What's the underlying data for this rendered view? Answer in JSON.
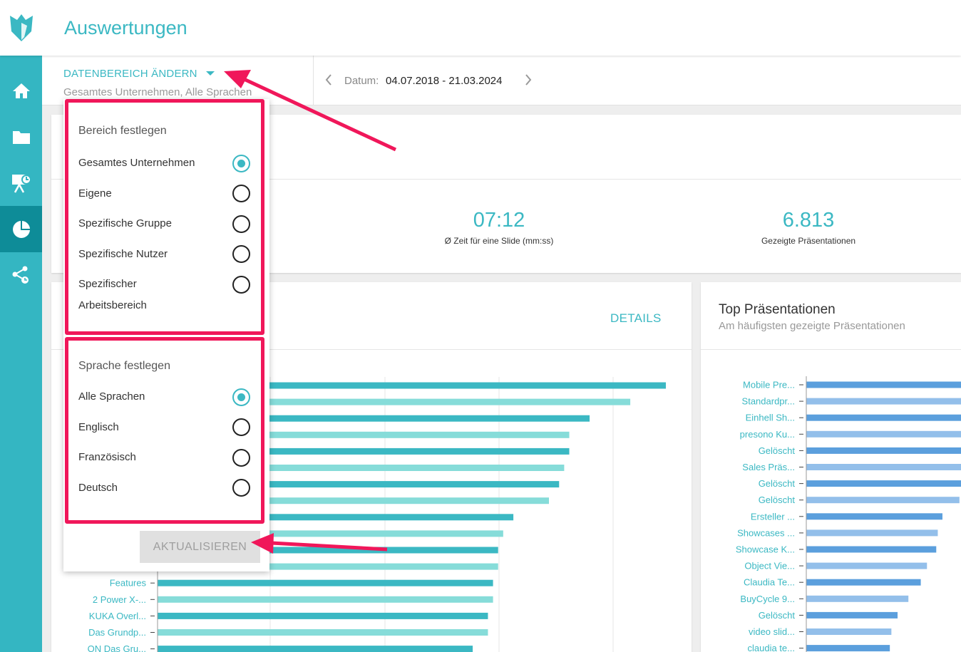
{
  "app": {
    "title": "Auswertungen",
    "logo_icon": "fox-logo-icon"
  },
  "sidebar": {
    "items": [
      {
        "name": "home",
        "icon": "home-icon",
        "active": false
      },
      {
        "name": "files",
        "icon": "folder-icon",
        "active": false
      },
      {
        "name": "presentations",
        "icon": "presentation-icon",
        "active": false
      },
      {
        "name": "analytics",
        "icon": "pie-chart-icon",
        "active": true
      },
      {
        "name": "shares",
        "icon": "share-icon",
        "active": false
      }
    ]
  },
  "filter": {
    "range_label": "DATENBEREICH ÄNDERN",
    "range_sub": "Gesamtes Unternehmen, Alle Sprachen",
    "date_label": "Datum:",
    "date_value": "04.07.2018 - 21.03.2024"
  },
  "kpis": [
    {
      "value": "07:12",
      "label": "Ø Zeit für eine Slide (mm:ss)"
    },
    {
      "value": "6.813",
      "label": "Gezeigte Präsentationen"
    }
  ],
  "slides_card": {
    "details_label": "DETAILS"
  },
  "top_card": {
    "title": "Top Präsentationen",
    "subtitle": "Am häufigsten gezeigte Präsentationen"
  },
  "dropdown": {
    "area_title": "Bereich festlegen",
    "area_options": [
      {
        "label": "Gesamtes Unternehmen",
        "checked": true
      },
      {
        "label": "Eigene",
        "checked": false
      },
      {
        "label": "Spezifische Gruppe",
        "checked": false
      },
      {
        "label": "Spezifische Nutzer",
        "checked": false
      },
      {
        "label": "Spezifischer Arbeitsbereich",
        "checked": false
      }
    ],
    "language_title": "Sprache festlegen",
    "language_options": [
      {
        "label": "Alle Sprachen",
        "checked": true
      },
      {
        "label": "Englisch",
        "checked": false
      },
      {
        "label": "Französisch",
        "checked": false
      },
      {
        "label": "Deutsch",
        "checked": false
      }
    ],
    "update_label": "AKTUALISIEREN"
  },
  "chart_data": [
    {
      "type": "bar",
      "orientation": "horizontal",
      "categories": [
        "",
        "",
        "",
        "",
        "",
        "",
        "",
        "",
        "",
        "",
        "",
        "",
        "Features",
        "2 Power X-...",
        "KUKA Overl...",
        "Das Grundp...",
        "ON Das Gru..."
      ],
      "values": [
        100,
        93,
        85,
        81,
        81,
        80,
        79,
        77,
        70,
        68,
        67,
        67,
        66,
        66,
        65,
        65,
        62
      ],
      "colors": [
        "#3bb8c3",
        "#86dcd9"
      ],
      "grid": true
    },
    {
      "type": "bar",
      "orientation": "horizontal",
      "categories": [
        "Mobile Pre...",
        "Standardpr...",
        "Einhell Sh...",
        "presono Ku...",
        "Gelöscht",
        "Sales Präs...",
        "Gelöscht",
        "Gelöscht",
        "Ersteller ...",
        "Showcases ...",
        "Showcase K...",
        "Object Vie...",
        "Claudia Te...",
        "BuyCycle 9...",
        "Gelöscht",
        "video slid...",
        "claudia te..."
      ],
      "values": [
        100,
        100,
        100,
        100,
        100,
        100,
        100,
        99,
        88,
        85,
        84,
        78,
        74,
        66,
        59,
        55,
        54
      ],
      "colors": [
        "#5b9fdd",
        "#93bfea"
      ],
      "grid": true
    }
  ]
}
